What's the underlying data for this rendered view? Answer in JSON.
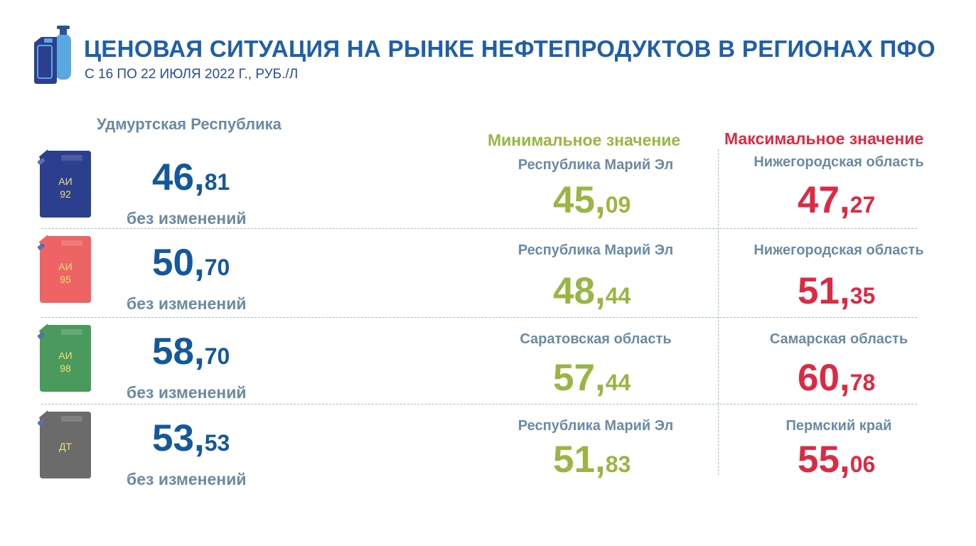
{
  "header": {
    "title": "ЦЕНОВАЯ СИТУАЦИЯ НА РЫНКЕ НЕФТЕПРОДУКТОВ В РЕГИОНАХ ПФО",
    "subtitle": "С 16 ПО 22 ИЮЛЯ 2022 Г., РУБ./Л",
    "logo_icon": "fuel-canister-and-gas-cylinder-icon"
  },
  "region": "Удмуртская Республика",
  "min_header": "Минимальное значение",
  "max_header": "Максимальное значение",
  "colors": {
    "blue": "#13589b",
    "min_green": "#9ab543",
    "max_red": "#dc2a44",
    "label_gray": "#6a8aa4"
  },
  "rows": [
    {
      "fuel_line1": "АИ",
      "fuel_line2": "92",
      "can_color": "#2c3f8f",
      "price_int": "46,",
      "price_frac": "81",
      "status": "без изменений",
      "min_region": "Республика Марий Эл",
      "min_int": "45,",
      "min_frac": "09",
      "max_region": "Нижегородская область",
      "max_int": "47,",
      "max_frac": "27"
    },
    {
      "fuel_line1": "АИ",
      "fuel_line2": "95",
      "can_color": "#ee6464",
      "price_int": "50,",
      "price_frac": "70",
      "status": "без изменений",
      "min_region": "Республика Марий Эл",
      "min_int": "48,",
      "min_frac": "44",
      "max_region": "Нижегородская область",
      "max_int": "51,",
      "max_frac": "35"
    },
    {
      "fuel_line1": "АИ",
      "fuel_line2": "98",
      "can_color": "#4a9a5e",
      "price_int": "58,",
      "price_frac": "70",
      "status": "без изменений",
      "min_region": "Саратовская область",
      "min_int": "57,",
      "min_frac": "44",
      "max_region": "Самарская область",
      "max_int": "60,",
      "max_frac": "78"
    },
    {
      "fuel_line1": "ДТ",
      "fuel_line2": "",
      "can_color": "#6b6b6b",
      "price_int": "53,",
      "price_frac": "53",
      "status": "без изменений",
      "min_region": "Республика Марий Эл",
      "min_int": "51,",
      "min_frac": "83",
      "max_region": "Пермский край",
      "max_int": "55,",
      "max_frac": "06"
    }
  ]
}
